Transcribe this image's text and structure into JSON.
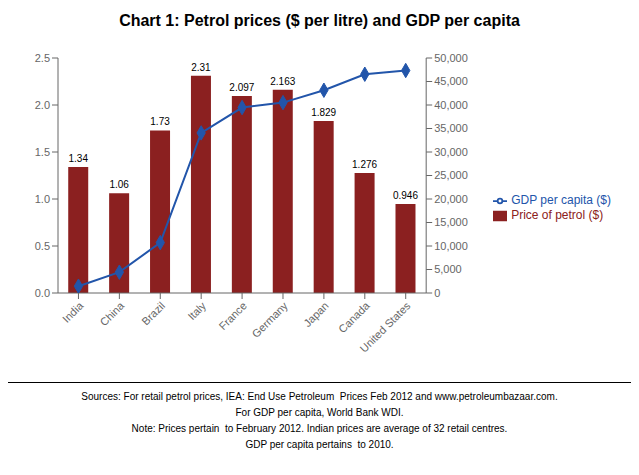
{
  "chart_data": {
    "type": "bar",
    "title": "Chart 1: Petrol prices ($ per litre) and GDP per capita",
    "categories": [
      "India",
      "China",
      "Brazil",
      "Italy",
      "France",
      "Germany",
      "Japan",
      "Canada",
      "United States"
    ],
    "series": [
      {
        "name": "Price of petrol ($)",
        "type": "bar",
        "color": "#8B2020",
        "data_labels": true,
        "values": [
          1.34,
          1.06,
          1.73,
          2.31,
          2.097,
          2.163,
          1.829,
          1.276,
          0.946
        ]
      },
      {
        "name": "GDP per capita ($)",
        "type": "line",
        "color": "#2255AA",
        "marker": "diamond",
        "axis": "y2",
        "values": [
          1450,
          4430,
          10720,
          34060,
          39460,
          40510,
          43140,
          46550,
          47340
        ]
      }
    ],
    "ylim": [
      0,
      2.5
    ],
    "yticks": [
      {
        "value": 0,
        "label": "0.0"
      },
      0.5,
      {
        "value": 1,
        "label": "1.0"
      },
      1.5,
      {
        "value": 2,
        "label": "2.0"
      },
      2.5
    ],
    "y2lim": [
      0,
      50000
    ],
    "y2ticks": [
      0,
      {
        "value": 5000,
        "label": "5,000"
      },
      {
        "value": 10000,
        "label": "10,000"
      },
      {
        "value": 15000,
        "label": "15,000"
      },
      {
        "value": 20000,
        "label": "20,000"
      },
      {
        "value": 25000,
        "label": "25,000"
      },
      {
        "value": 30000,
        "label": "30,000"
      },
      {
        "value": 35000,
        "label": "35,000"
      },
      {
        "value": 40000,
        "label": "40,000"
      },
      {
        "value": 45000,
        "label": "45,000"
      },
      {
        "value": 50000,
        "label": "50,000"
      }
    ],
    "grid": false,
    "legend": "right",
    "annotations": [
      "Sources: For retail petrol prices, IEA: End Use Petroleum  Prices Feb 2012 and www.petroleumbazaar.com.",
      "For GDP per capita, World Bank WDI.",
      "Note: Prices pertain  to February 2012. Indian prices are average of 32 retail centres.",
      "GDP per capita pertains  to 2010."
    ]
  }
}
